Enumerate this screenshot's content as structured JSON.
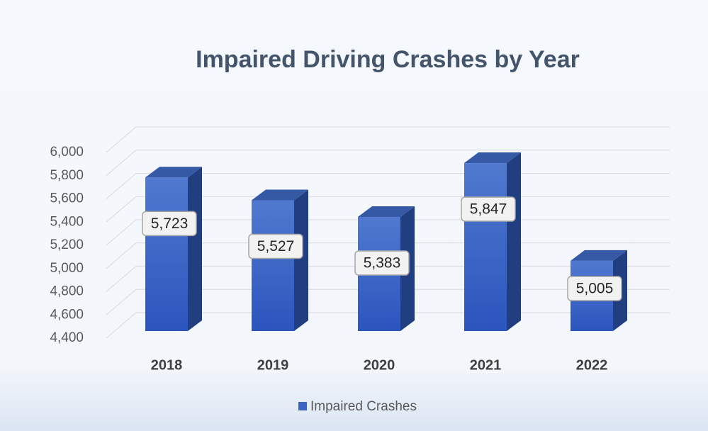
{
  "chart_data": {
    "type": "bar3d",
    "title": "Impaired Driving Crashes by Year",
    "categories": [
      "2018",
      "2019",
      "2020",
      "2021",
      "2022"
    ],
    "series": [
      {
        "name": "Impaired Crashes",
        "color": "#3a64c4",
        "values": [
          5723,
          5527,
          5383,
          5847,
          5005
        ],
        "value_labels": [
          "5,723",
          "5,527",
          "5,383",
          "5,847",
          "5,005"
        ]
      }
    ],
    "ylim": [
      4400,
      6000
    ],
    "yticks": [
      {
        "value": 4400,
        "label": "4,400"
      },
      {
        "value": 4600,
        "label": "4,600"
      },
      {
        "value": 4800,
        "label": "4,800"
      },
      {
        "value": 5000,
        "label": "5,000"
      },
      {
        "value": 5200,
        "label": "5,200"
      },
      {
        "value": 5400,
        "label": "5,400"
      },
      {
        "value": 5600,
        "label": "5,600"
      },
      {
        "value": 5800,
        "label": "5,800"
      },
      {
        "value": 6000,
        "label": "6,000"
      }
    ],
    "grid": true,
    "legend": "bottom"
  }
}
